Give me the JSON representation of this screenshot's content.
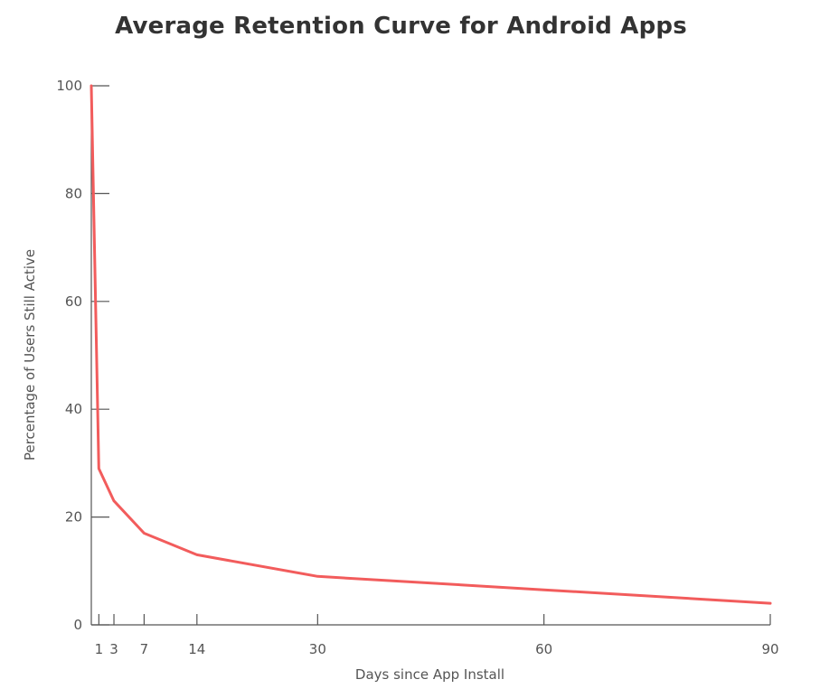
{
  "chart_data": {
    "type": "line",
    "title": "Average Retention Curve for Android Apps",
    "xlabel": "Days since App Install",
    "ylabel": "Percentage of Users Still Active",
    "xlim": [
      0,
      90
    ],
    "ylim": [
      0,
      100
    ],
    "xticks": [
      1,
      3,
      7,
      14,
      30,
      60,
      90
    ],
    "yticks": [
      0,
      20,
      40,
      60,
      80,
      100
    ],
    "grid": false,
    "series": [
      {
        "color": "#f25c5c",
        "x": [
          0,
          1,
          3,
          7,
          14,
          30,
          60,
          90
        ],
        "y": [
          100,
          29,
          23,
          17,
          13,
          9,
          6.5,
          4
        ]
      }
    ]
  }
}
